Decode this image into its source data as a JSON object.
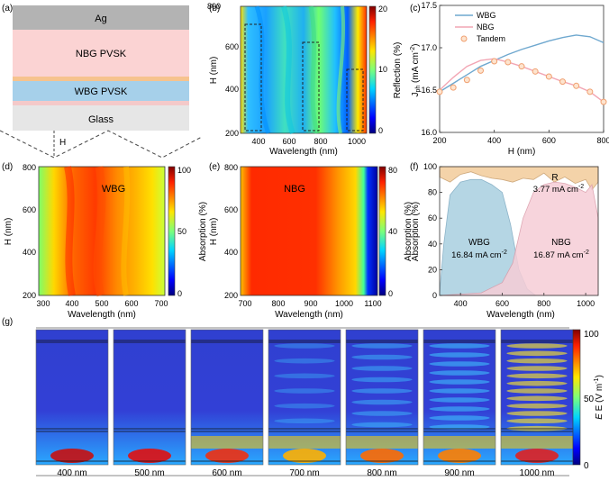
{
  "colors": {
    "wbg": "#6fa8cf",
    "ngb": "#f2a6b4",
    "tandem_edge": "#f0a070",
    "tandem_fill": "#fde4cf",
    "reflection_fill": "#f3cfa0",
    "wbg_fill": "#a9cfe0",
    "ngb_fill": "#f6cdd6",
    "ag": "#b3b3b3",
    "ngb_pvsk": "#fbd3d3",
    "wbg_pvsk": "#a6d0ea",
    "glass": "#e6e6e6"
  },
  "panels": {
    "a": {
      "tag": "(a)",
      "layers": [
        "Ag",
        "NBG PVSK",
        "WBG PVSK",
        "Glass"
      ],
      "h_label": "H"
    },
    "b": {
      "tag": "(b)",
      "xlabel": "Wavelength (nm)",
      "ylabel": "H (nm)",
      "cbar_label": "Reflection (%)",
      "cbar_ticks": [
        "20",
        "10",
        "0"
      ],
      "x_ticks": [
        "400",
        "600",
        "800",
        "1000"
      ],
      "y_ticks": [
        "800",
        "600",
        "400",
        "200"
      ]
    },
    "d": {
      "tag": "(d)",
      "label": "WBG",
      "xlabel": "Wavelength (nm)",
      "ylabel": "H (nm)",
      "cbar_label": "Absorption (%)",
      "cbar_ticks": [
        "100",
        "50",
        "0"
      ],
      "x_ticks": [
        "300",
        "400",
        "500",
        "600",
        "700"
      ],
      "y_ticks": [
        "800",
        "600",
        "400",
        "200"
      ]
    },
    "e": {
      "tag": "(e)",
      "label": "NBG",
      "xlabel": "Wavelength (nm)",
      "ylabel": "H (nm)",
      "cbar_label": "Absorption (%)",
      "cbar_ticks": [
        "80",
        "40",
        "0"
      ],
      "x_ticks": [
        "700",
        "800",
        "900",
        "1000",
        "1100"
      ],
      "y_ticks": [
        "800",
        "600",
        "400",
        "200"
      ]
    },
    "g": {
      "tag": "(g)",
      "cbar_label": "E (V m",
      "cbar_label_sup": "-1",
      "cbar_label_end": ")",
      "cbar_ticks": [
        "100",
        "50",
        "0"
      ],
      "wavelengths": [
        "400 nm",
        "500 nm",
        "600 nm",
        "700 nm",
        "800 nm",
        "900 nm",
        "1000 nm"
      ]
    }
  },
  "chart_data": [
    {
      "id": "c",
      "tag": "(c)",
      "type": "line",
      "xlabel": "H (nm)",
      "ylabel": "J",
      "ylabel_sub": "ph",
      "ylabel_unit": "(mA cm",
      "ylabel_sup": "-2",
      "ylabel_end": ")",
      "xlim": [
        200,
        800
      ],
      "ylim": [
        16.0,
        17.5
      ],
      "x_ticks": [
        200,
        400,
        600,
        800
      ],
      "y_ticks": [
        16.0,
        16.5,
        17.0,
        17.5
      ],
      "y_tick_labels": [
        "16.0",
        "16.5",
        "17.0",
        "17.5"
      ],
      "series": [
        {
          "name": "WBG",
          "style": "line",
          "x": [
            200,
            250,
            300,
            350,
            400,
            450,
            500,
            550,
            600,
            650,
            700,
            750,
            800
          ],
          "y": [
            16.48,
            16.58,
            16.68,
            16.78,
            16.85,
            16.92,
            16.98,
            17.03,
            17.08,
            17.12,
            17.15,
            17.13,
            17.06
          ]
        },
        {
          "name": "NBG",
          "style": "line",
          "x": [
            200,
            250,
            300,
            350,
            400,
            450,
            500,
            550,
            600,
            650,
            700,
            750,
            800
          ],
          "y": [
            16.5,
            16.65,
            16.78,
            16.85,
            16.87,
            16.83,
            16.78,
            16.72,
            16.66,
            16.6,
            16.55,
            16.48,
            16.36
          ]
        },
        {
          "name": "Tandem",
          "style": "marker",
          "x": [
            200,
            250,
            300,
            350,
            400,
            450,
            500,
            550,
            600,
            650,
            700,
            750,
            800
          ],
          "y": [
            16.48,
            16.53,
            16.62,
            16.73,
            16.84,
            16.83,
            16.78,
            16.72,
            16.66,
            16.6,
            16.55,
            16.48,
            16.36
          ]
        }
      ]
    },
    {
      "id": "f",
      "tag": "(f)",
      "type": "area",
      "xlabel": "Wavelength (nm)",
      "ylabel": "Absorption (%)",
      "xlim": [
        300,
        1060
      ],
      "ylim": [
        0,
        100
      ],
      "x_ticks": [
        400,
        600,
        800,
        1000
      ],
      "y_ticks": [
        0,
        20,
        40,
        60,
        80,
        100
      ],
      "series": [
        {
          "name": "R",
          "value_label": "3.77 mA cm",
          "value_sup": "-2",
          "x": [
            300,
            350,
            400,
            450,
            500,
            550,
            600,
            650,
            700,
            750,
            800,
            850,
            900,
            950,
            1000,
            1030,
            1060
          ],
          "y": [
            92,
            88,
            94,
            96,
            93,
            91,
            90,
            88,
            91,
            90,
            95,
            88,
            92,
            87,
            90,
            82,
            88
          ]
        },
        {
          "name": "WBG",
          "value_label": "16.84 mA cm",
          "value_sup": "-2",
          "x": [
            300,
            320,
            350,
            400,
            450,
            500,
            550,
            600,
            640,
            680,
            720,
            760
          ],
          "y": [
            2,
            40,
            78,
            88,
            90,
            90,
            86,
            80,
            55,
            20,
            5,
            0
          ]
        },
        {
          "name": "NBG",
          "value_label": "16.87 mA cm",
          "value_sup": "-2",
          "x": [
            300,
            500,
            600,
            650,
            700,
            750,
            800,
            850,
            900,
            950,
            1000,
            1030,
            1060
          ],
          "y": [
            0,
            2,
            10,
            25,
            60,
            80,
            86,
            88,
            87,
            84,
            80,
            86,
            60
          ]
        }
      ]
    }
  ]
}
